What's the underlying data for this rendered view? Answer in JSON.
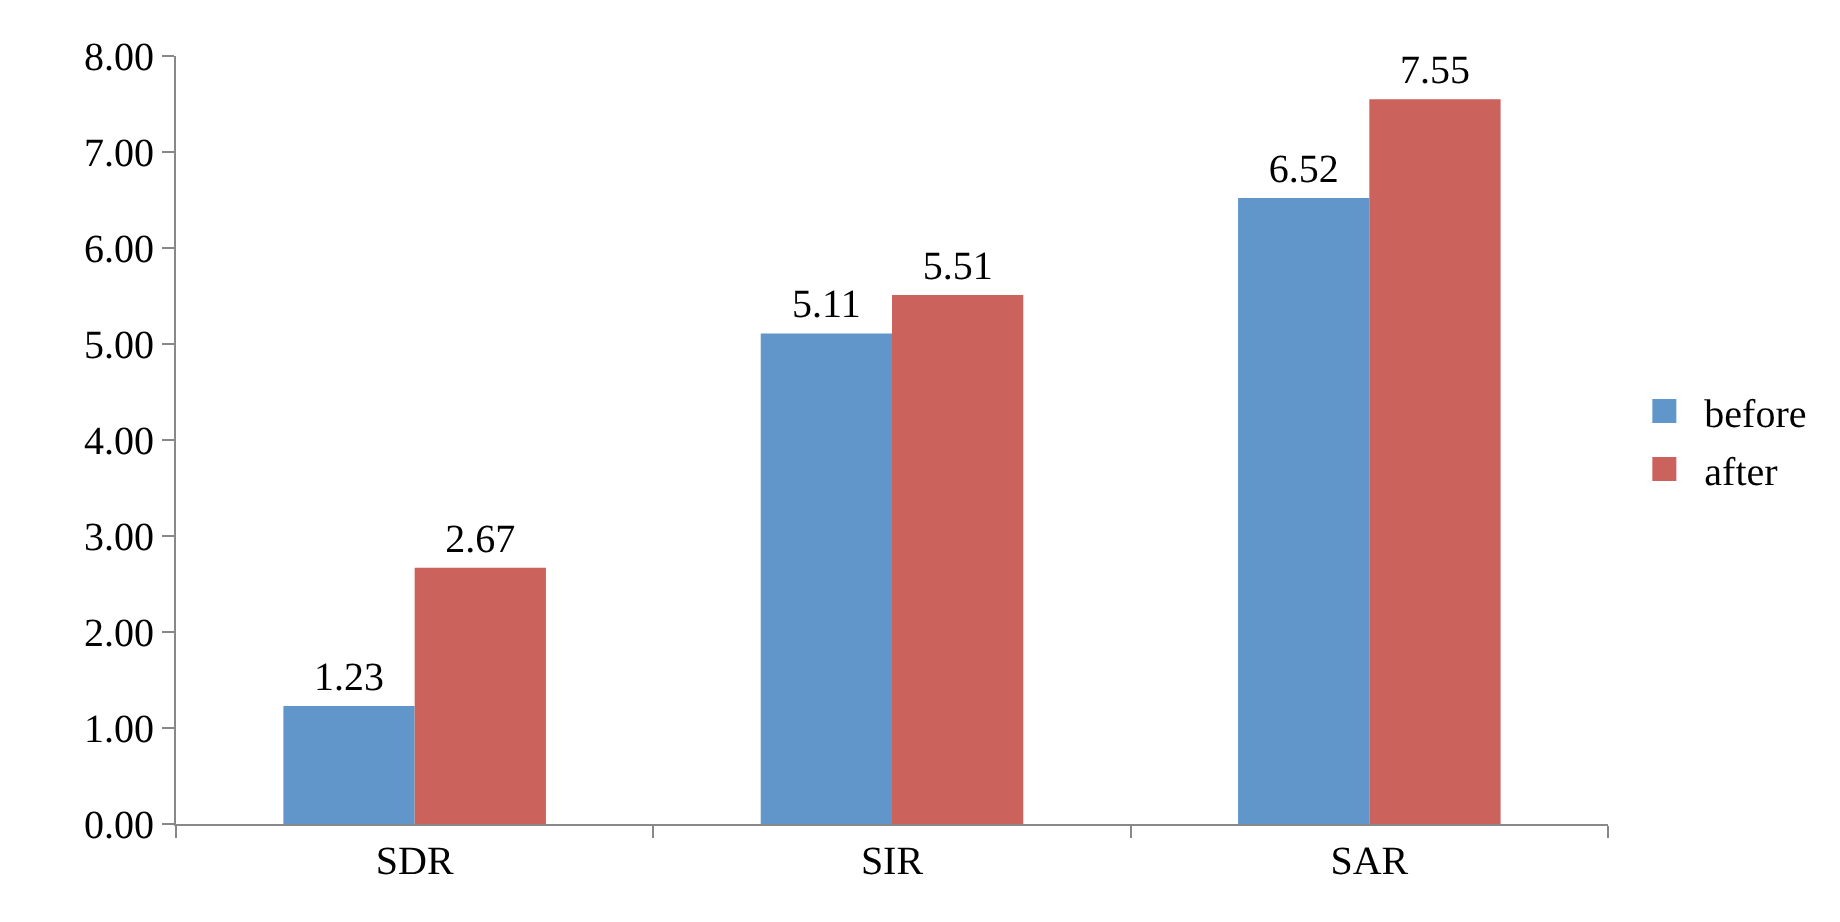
{
  "chart_data": {
    "type": "bar",
    "categories": [
      "SDR",
      "SIR",
      "SAR"
    ],
    "series": [
      {
        "name": "before",
        "color": "#6096c9",
        "values": [
          1.23,
          5.11,
          6.52
        ]
      },
      {
        "name": "after",
        "color": "#cb625b",
        "values": [
          2.67,
          5.51,
          7.55
        ]
      }
    ],
    "ylim": [
      0,
      8
    ],
    "yticks": [
      {
        "value": 0,
        "label": "0.00"
      },
      {
        "value": 1,
        "label": "1.00"
      },
      {
        "value": 2,
        "label": "2.00"
      },
      {
        "value": 3,
        "label": "3.00"
      },
      {
        "value": 4,
        "label": "4.00"
      },
      {
        "value": 5,
        "label": "5.00"
      },
      {
        "value": 6,
        "label": "6.00"
      },
      {
        "value": 7,
        "label": "7.00"
      },
      {
        "value": 8,
        "label": "8.00"
      }
    ],
    "grid": false,
    "legend": "right",
    "data_labels": true
  }
}
